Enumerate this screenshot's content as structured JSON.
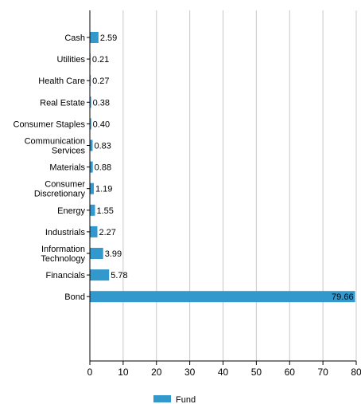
{
  "chart_data": {
    "type": "bar",
    "orientation": "horizontal",
    "categories": [
      "Cash",
      "Utilities",
      "Health Care",
      "Real Estate",
      "Consumer Staples",
      "Communication Services",
      "Materials",
      "Consumer Discretionary",
      "Energy",
      "Industrials",
      "Information Technology",
      "Financials",
      "Bond"
    ],
    "category_label_lines": [
      [
        "Cash"
      ],
      [
        "Utilities"
      ],
      [
        "Health Care"
      ],
      [
        "Real Estate"
      ],
      [
        "Consumer Staples"
      ],
      [
        "Communication",
        "Services"
      ],
      [
        "Materials"
      ],
      [
        "Consumer",
        "Discretionary"
      ],
      [
        "Energy"
      ],
      [
        "Industrials"
      ],
      [
        "Information",
        "Technology"
      ],
      [
        "Financials"
      ],
      [
        "Bond"
      ]
    ],
    "series": [
      {
        "name": "Fund",
        "color": "#3399cc",
        "values": [
          2.59,
          0.21,
          0.27,
          0.38,
          0.4,
          0.83,
          0.88,
          1.19,
          1.55,
          2.27,
          3.99,
          5.78,
          79.66
        ],
        "value_labels": [
          "2.59",
          "0.21",
          "0.27",
          "0.38",
          "0.40",
          "0.83",
          "0.88",
          "1.19",
          "1.55",
          "2.27",
          "3.99",
          "5.78",
          "79.66"
        ]
      }
    ],
    "xlim": [
      0,
      80
    ],
    "xticks": [
      0,
      10,
      20,
      30,
      40,
      50,
      60,
      70,
      80
    ],
    "xtick_labels": [
      "0",
      "10",
      "20",
      "30",
      "40",
      "50",
      "60",
      "70",
      "80"
    ],
    "grid": "vertical",
    "legend": "bottom-center",
    "title": "",
    "xlabel": "",
    "ylabel": ""
  }
}
